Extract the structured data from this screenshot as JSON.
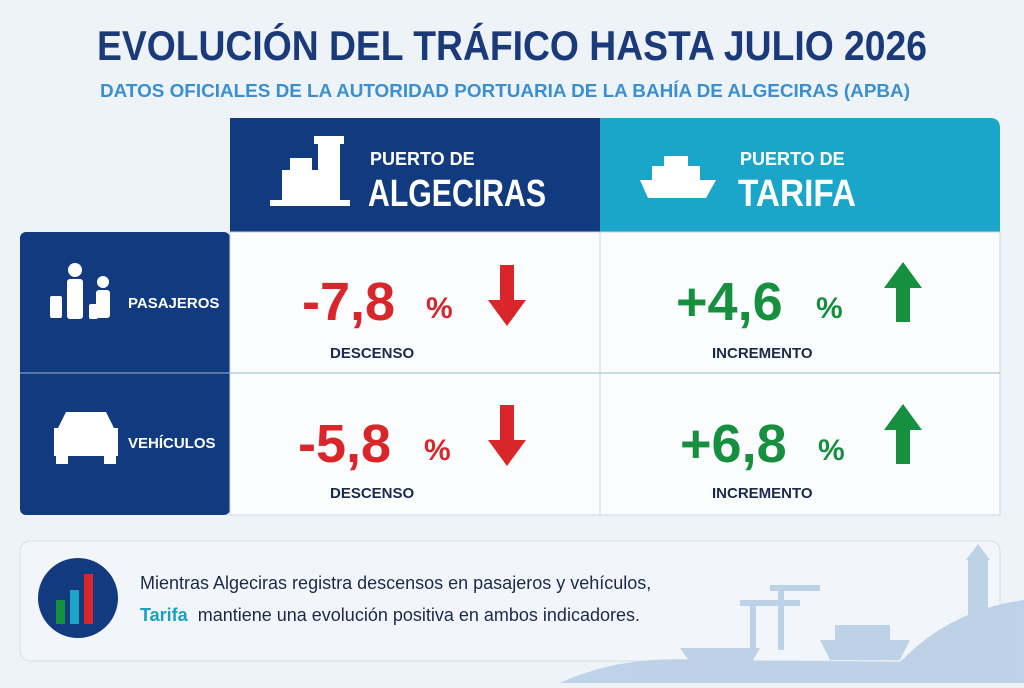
{
  "header": {
    "title": "EVOLUCIÓN DEL TRÁFICO HASTA JULIO 2026",
    "subtitle": "DATOS OFICIALES DE LA AUTORIDAD PORTUARIA DE LA BAHÍA DE ALGECIRAS (APBA)"
  },
  "table": {
    "columns": [
      {
        "line1": "PUERTO DE",
        "line2": "ALGECIRAS"
      },
      {
        "line1": "PUERTO DE",
        "line2": "TARIFA"
      }
    ],
    "rows": [
      {
        "label": "PASAJEROS",
        "cells": [
          {
            "value": "-7,8",
            "unit": "%",
            "note": "DESCENSO"
          },
          {
            "value": "+4,6",
            "unit": "%",
            "note": "INCREMENTO"
          }
        ]
      },
      {
        "label": "VEHÍCULOS",
        "cells": [
          {
            "value": "-5,8",
            "unit": "%",
            "note": "DESCENSO"
          },
          {
            "value": "+6,8",
            "unit": "%",
            "note": "INCREMENTO"
          }
        ]
      }
    ]
  },
  "footer": {
    "line1": "Mientras Algeciras registra descensos en pasajeros y vehículos,",
    "highlight": "Tarifa",
    "line2": "mantiene una evolución positiva en ambos indicadores."
  }
}
